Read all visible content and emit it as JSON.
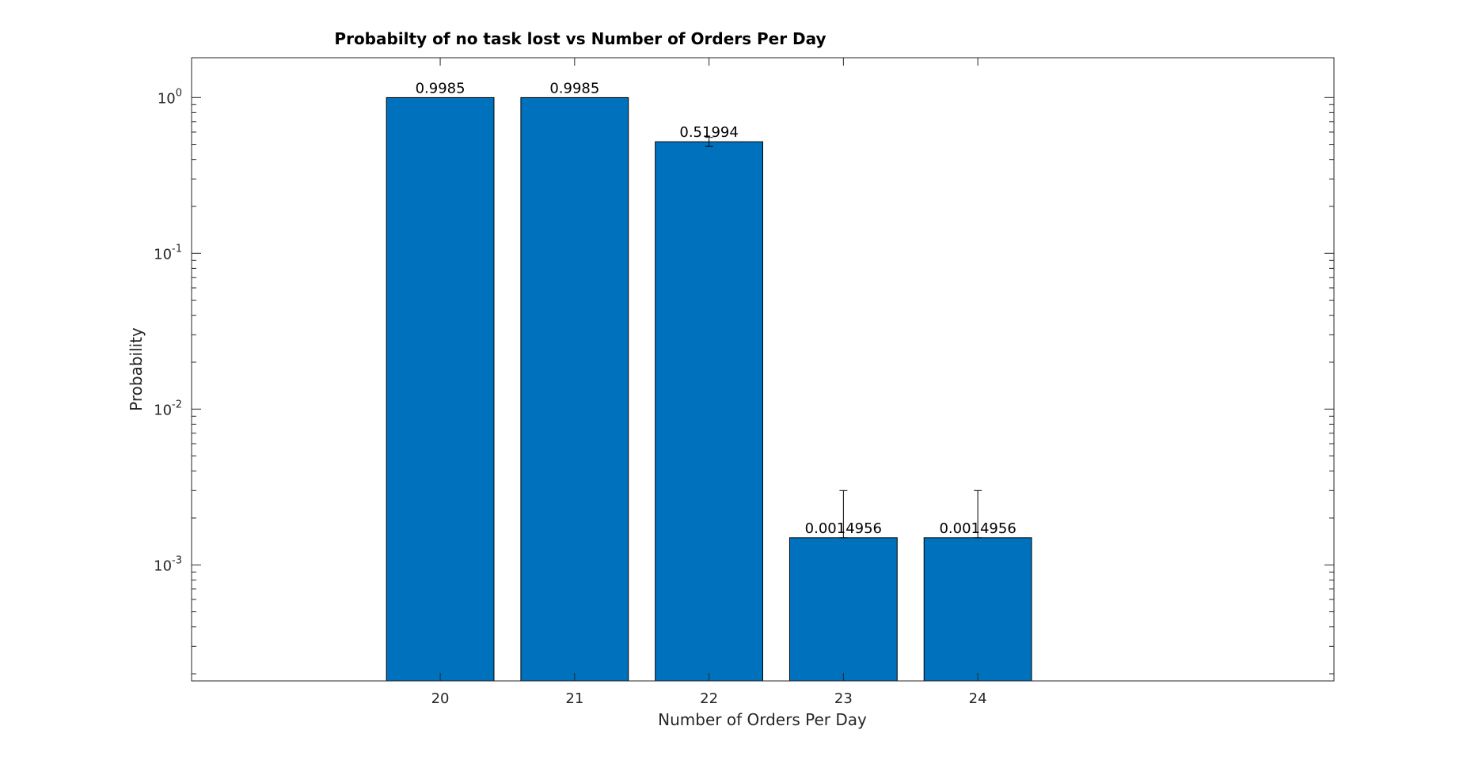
{
  "chart_data": {
    "type": "bar",
    "title": "Probabilty of no task lost vs Number of Orders Per Day",
    "xlabel": "Number of Orders Per Day",
    "ylabel": "Probability",
    "categories": [
      "20",
      "21",
      "22",
      "23",
      "24"
    ],
    "values": [
      0.9985,
      0.9985,
      0.51994,
      0.0014956,
      0.0014956
    ],
    "value_labels": [
      "0.9985",
      "0.9985",
      "0.51994",
      "0.0014956",
      "0.0014956"
    ],
    "error_upper": [
      0.9985,
      0.9985,
      0.555,
      0.003,
      0.003
    ],
    "error_lower": [
      0.9985,
      0.9985,
      0.485,
      0.0014956,
      0.0014956
    ],
    "xlim": [
      18.15,
      26.65
    ],
    "ylim": [
      0.00018,
      1.8
    ],
    "yscale": "log",
    "yticks": [
      0.001,
      0.01,
      0.1,
      1
    ],
    "ytick_exponents": [
      "-3",
      "-2",
      "-1",
      "0"
    ],
    "ytick_base": "10",
    "bar_color": "#0072BD",
    "grid": false,
    "legend": "none"
  }
}
